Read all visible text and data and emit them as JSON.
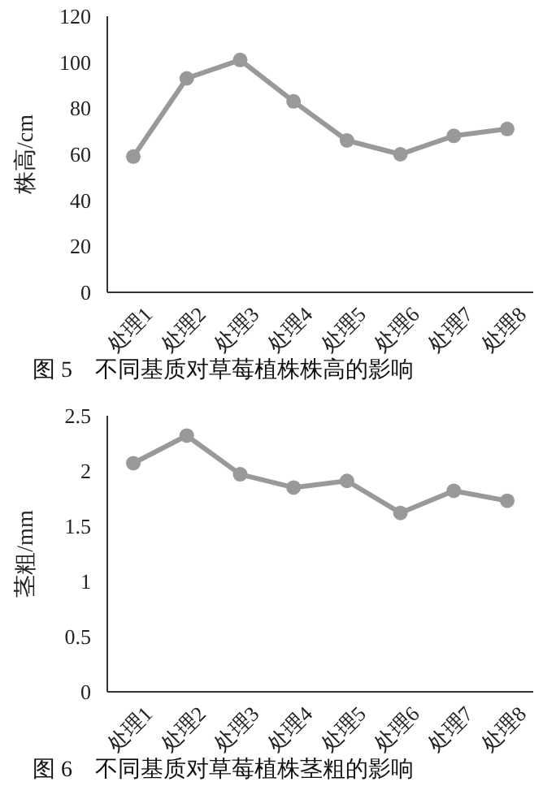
{
  "chart_data": [
    {
      "type": "line",
      "title": "图 5　不同基质对草莓植株株高的影响",
      "ylabel": "株高/cm",
      "categories": [
        "处理1",
        "处理2",
        "处理3",
        "处理4",
        "处理5",
        "处理6",
        "处理7",
        "处理8"
      ],
      "series": [
        {
          "color": "#999999",
          "values": [
            59,
            93,
            101,
            83,
            66,
            60,
            68,
            71
          ]
        }
      ],
      "ylim": [
        0,
        120
      ],
      "yticks": [
        0,
        20,
        40,
        60,
        80,
        100,
        120
      ],
      "marker": "circle",
      "grid": false
    },
    {
      "type": "line",
      "title": "图 6　不同基质对草莓植株茎粗的影响",
      "ylabel": "茎粗/mm",
      "categories": [
        "处理1",
        "处理2",
        "处理3",
        "处理4",
        "处理5",
        "处理6",
        "处理7",
        "处理8"
      ],
      "series": [
        {
          "color": "#999999",
          "values": [
            2.07,
            2.32,
            1.97,
            1.85,
            1.91,
            1.62,
            1.82,
            1.73
          ]
        }
      ],
      "ylim": [
        0,
        2.5
      ],
      "yticks": [
        0,
        0.5,
        1,
        1.5,
        2,
        2.5
      ],
      "marker": "circle",
      "grid": false
    }
  ]
}
